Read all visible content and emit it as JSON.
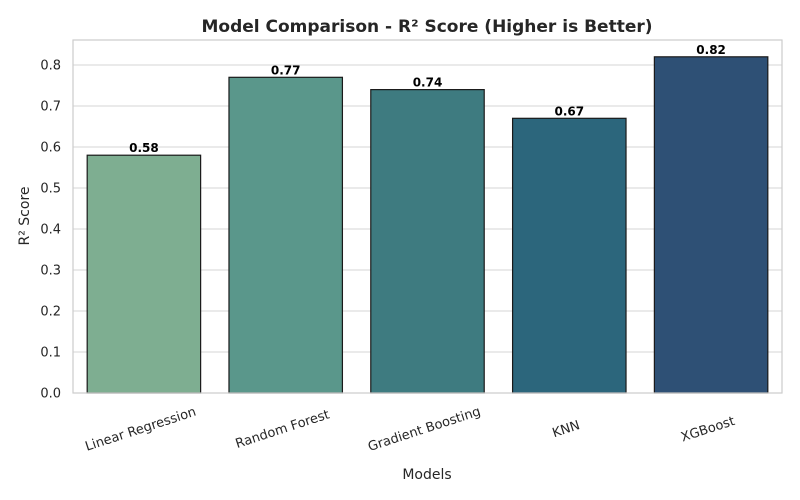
{
  "chart_data": {
    "type": "bar",
    "title": "Model Comparison - R² Score (Higher is Better)",
    "xlabel": "Models",
    "ylabel": "R² Score",
    "categories": [
      "Linear Regression",
      "Random Forest",
      "Gradient Boosting",
      "KNN",
      "XGBoost"
    ],
    "values": [
      0.58,
      0.77,
      0.74,
      0.67,
      0.82
    ],
    "data_labels": [
      "0.58",
      "0.77",
      "0.74",
      "0.67",
      "0.82"
    ],
    "colors": [
      "#7eae91",
      "#5a978b",
      "#3e7b80",
      "#2c667c",
      "#2e5075"
    ],
    "ylim": [
      0,
      0.861
    ],
    "yticks": [
      0.0,
      0.1,
      0.2,
      0.3,
      0.4,
      0.5,
      0.6,
      0.7,
      0.8
    ],
    "ytick_labels": [
      "0.0",
      "0.1",
      "0.2",
      "0.3",
      "0.4",
      "0.5",
      "0.6",
      "0.7",
      "0.8"
    ],
    "grid": "horizontal",
    "legend": "none"
  }
}
